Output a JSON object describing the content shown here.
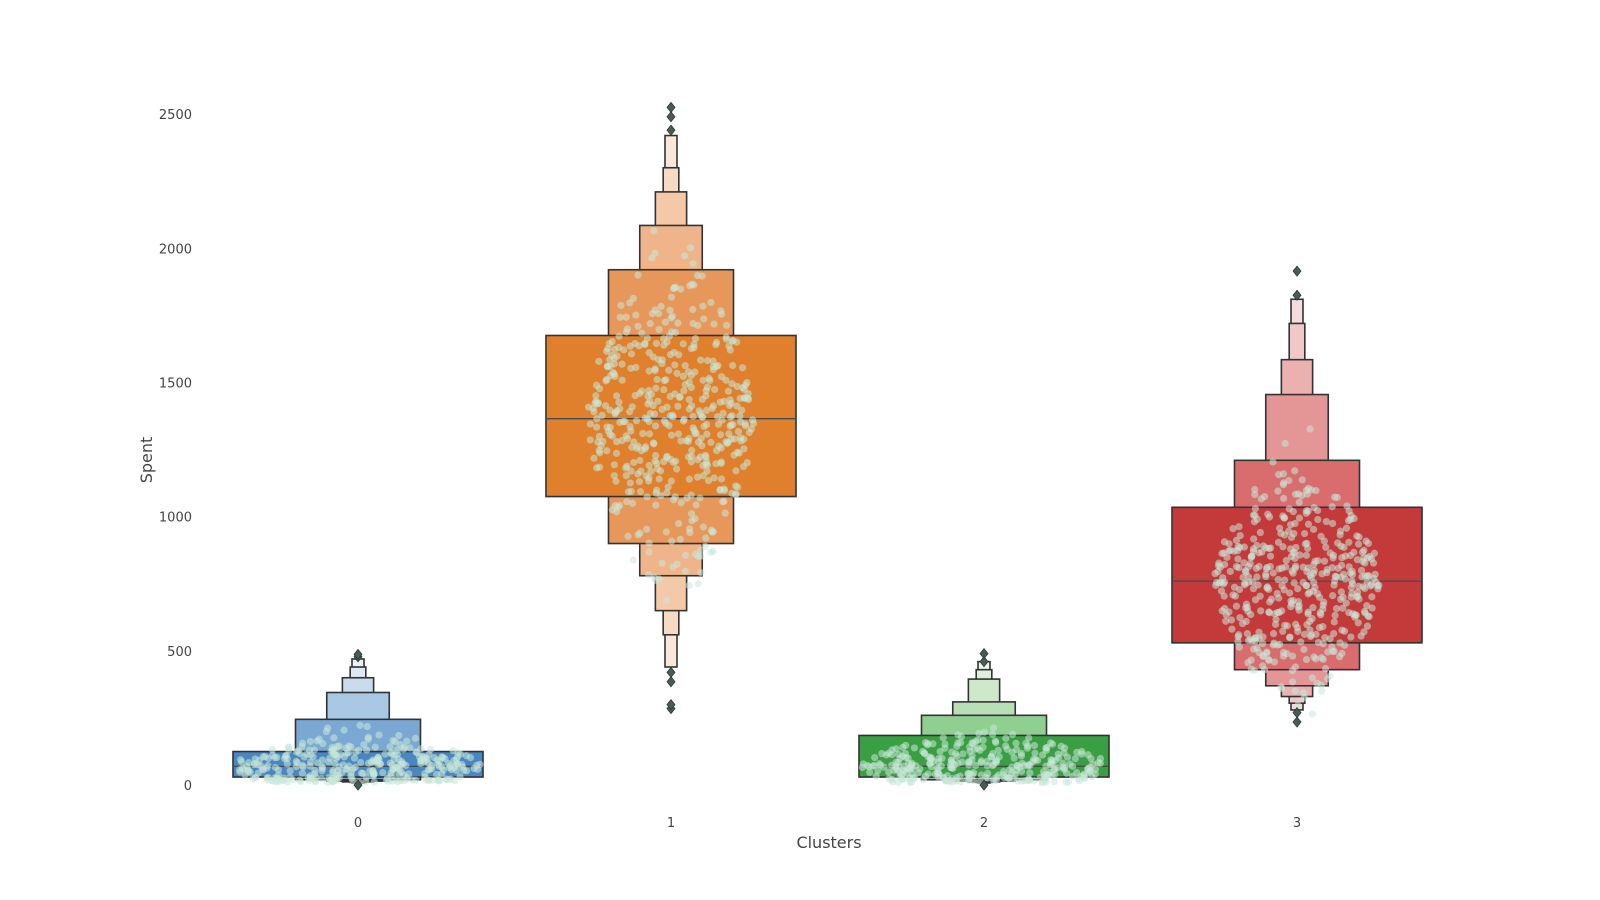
{
  "chart_data": {
    "type": "boxen",
    "xlabel": "Clusters",
    "ylabel": "Spent",
    "ylim": [
      -130,
      2720
    ],
    "yticks": [
      0,
      500,
      1000,
      1500,
      2000,
      2500
    ],
    "categories": [
      "0",
      "1",
      "2",
      "3"
    ],
    "grid": false,
    "legend": "none",
    "swarm_color": "#c8e8d8",
    "series": [
      {
        "category": "0",
        "color": "#3a7ab8",
        "median": 70,
        "levels": [
          {
            "low": 30,
            "high": 125,
            "color": "#4a87c0"
          },
          {
            "low": 20,
            "high": 245,
            "color": "#7aa8d2"
          },
          {
            "low": 15,
            "high": 345,
            "color": "#a9c8e4"
          },
          {
            "low": 12,
            "high": 400,
            "color": "#c8dced"
          },
          {
            "low": 10,
            "high": 440,
            "color": "#dce8f3"
          },
          {
            "low": 8,
            "high": 470,
            "color": "#eaf1f8"
          }
        ],
        "outliers": [
          0,
          478,
          487
        ],
        "swarm": {
          "min": 10,
          "max": 480,
          "center": 70,
          "count": 320
        }
      },
      {
        "category": "1",
        "color": "#e07f2c",
        "median": 1365,
        "levels": [
          {
            "low": 1075,
            "high": 1675,
            "color": "#e07f2c"
          },
          {
            "low": 900,
            "high": 1920,
            "color": "#e8975a"
          },
          {
            "low": 780,
            "high": 2085,
            "color": "#efb48a"
          },
          {
            "low": 650,
            "high": 2210,
            "color": "#f3c9a8"
          },
          {
            "low": 560,
            "high": 2300,
            "color": "#f6dac2"
          },
          {
            "low": 440,
            "high": 2420,
            "color": "#f9e8d9"
          }
        ],
        "outliers": [
          285,
          300,
          385,
          420,
          2440,
          2490,
          2525
        ],
        "swarm": {
          "min": 290,
          "max": 2525,
          "center": 1365,
          "count": 460
        }
      },
      {
        "category": "2",
        "color": "#2e9a3a",
        "median": 70,
        "levels": [
          {
            "low": 30,
            "high": 185,
            "color": "#3a9e42"
          },
          {
            "low": 20,
            "high": 260,
            "color": "#8fcf8f"
          },
          {
            "low": 15,
            "high": 310,
            "color": "#b8e0b5"
          },
          {
            "low": 12,
            "high": 395,
            "color": "#cde9ca"
          },
          {
            "low": 10,
            "high": 430,
            "color": "#def1dc"
          },
          {
            "low": 8,
            "high": 460,
            "color": "#ebf6ea"
          }
        ],
        "outliers": [
          0,
          460,
          490
        ],
        "swarm": {
          "min": 10,
          "max": 490,
          "center": 70,
          "count": 320
        }
      },
      {
        "category": "3",
        "color": "#c43a3a",
        "median": 760,
        "levels": [
          {
            "low": 530,
            "high": 1035,
            "color": "#c43a3a"
          },
          {
            "low": 430,
            "high": 1210,
            "color": "#d96d6d"
          },
          {
            "low": 370,
            "high": 1455,
            "color": "#e49595"
          },
          {
            "low": 330,
            "high": 1585,
            "color": "#ebb1b1"
          },
          {
            "low": 305,
            "high": 1720,
            "color": "#f1c8c8"
          },
          {
            "low": 280,
            "high": 1810,
            "color": "#f6dbdb"
          }
        ],
        "outliers": [
          235,
          270,
          1825,
          1915
        ],
        "swarm": {
          "min": 250,
          "max": 1830,
          "center": 760,
          "count": 440
        }
      }
    ]
  }
}
